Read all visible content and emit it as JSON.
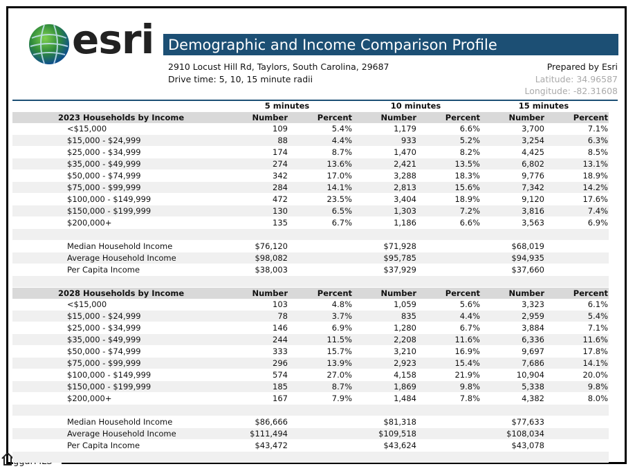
{
  "header": {
    "logo": "esri",
    "title": "Demographic and Income Comparison Profile",
    "address": "2910 Locust Hill Rd, Taylors, South Carolina, 29687",
    "drive_time": "Drive time: 5, 10, 15 minute radii",
    "prepared_by": "Prepared by Esri",
    "latitude": "Latitude: 34.96587",
    "longitude": "Longitude: -82.31608"
  },
  "table": {
    "groups": [
      "5 minutes",
      "10 minutes",
      "15 minutes"
    ],
    "sections": [
      {
        "title": "2023 Households by Income",
        "columns": [
          "Number",
          "Percent",
          "Number",
          "Percent",
          "Number",
          "Percent"
        ],
        "rows": [
          [
            "<$15,000",
            "109",
            "5.4%",
            "1,179",
            "6.6%",
            "3,700",
            "7.1%"
          ],
          [
            "$15,000 - $24,999",
            "88",
            "4.4%",
            "933",
            "5.2%",
            "3,254",
            "6.3%"
          ],
          [
            "$25,000 - $34,999",
            "174",
            "8.7%",
            "1,470",
            "8.2%",
            "4,425",
            "8.5%"
          ],
          [
            "$35,000 - $49,999",
            "274",
            "13.6%",
            "2,421",
            "13.5%",
            "6,802",
            "13.1%"
          ],
          [
            "$50,000 - $74,999",
            "342",
            "17.0%",
            "3,288",
            "18.3%",
            "9,776",
            "18.9%"
          ],
          [
            "$75,000 - $99,999",
            "284",
            "14.1%",
            "2,813",
            "15.6%",
            "7,342",
            "14.2%"
          ],
          [
            "$100,000 - $149,999",
            "472",
            "23.5%",
            "3,404",
            "18.9%",
            "9,120",
            "17.6%"
          ],
          [
            "$150,000 - $199,999",
            "130",
            "6.5%",
            "1,303",
            "7.2%",
            "3,816",
            "7.4%"
          ],
          [
            "$200,000+",
            "135",
            "6.7%",
            "1,186",
            "6.6%",
            "3,563",
            "6.9%"
          ]
        ],
        "summary": [
          [
            "Median Household Income",
            "$76,120",
            "$71,928",
            "$68,019"
          ],
          [
            "Average Household Income",
            "$98,082",
            "$95,785",
            "$94,935"
          ],
          [
            "Per Capita Income",
            "$38,003",
            "$37,929",
            "$37,660"
          ]
        ]
      },
      {
        "title": "2028 Households by Income",
        "columns": [
          "Number",
          "Percent",
          "Number",
          "Percent",
          "Number",
          "Percent"
        ],
        "rows": [
          [
            "<$15,000",
            "103",
            "4.8%",
            "1,059",
            "5.6%",
            "3,323",
            "6.1%"
          ],
          [
            "$15,000 - $24,999",
            "78",
            "3.7%",
            "835",
            "4.4%",
            "2,959",
            "5.4%"
          ],
          [
            "$25,000 - $34,999",
            "146",
            "6.9%",
            "1,280",
            "6.7%",
            "3,884",
            "7.1%"
          ],
          [
            "$35,000 - $49,999",
            "244",
            "11.5%",
            "2,208",
            "11.6%",
            "6,336",
            "11.6%"
          ],
          [
            "$50,000 - $74,999",
            "333",
            "15.7%",
            "3,210",
            "16.9%",
            "9,697",
            "17.8%"
          ],
          [
            "$75,000 - $99,999",
            "296",
            "13.9%",
            "2,923",
            "15.4%",
            "7,686",
            "14.1%"
          ],
          [
            "$100,000 - $149,999",
            "574",
            "27.0%",
            "4,158",
            "21.9%",
            "10,904",
            "20.0%"
          ],
          [
            "$150,000 - $199,999",
            "185",
            "8.7%",
            "1,869",
            "9.8%",
            "5,338",
            "9.8%"
          ],
          [
            "$200,000+",
            "167",
            "7.9%",
            "1,484",
            "7.8%",
            "4,382",
            "8.0%"
          ]
        ],
        "summary": [
          [
            "Median Household Income",
            "$86,666",
            "$81,318",
            "$77,633"
          ],
          [
            "Average Household Income",
            "$111,494",
            "$109,518",
            "$108,034"
          ],
          [
            "Per Capita Income",
            "$43,472",
            "$43,624",
            "$43,078"
          ]
        ]
      }
    ]
  },
  "footer": {
    "watermark": "ggarMLS™"
  }
}
